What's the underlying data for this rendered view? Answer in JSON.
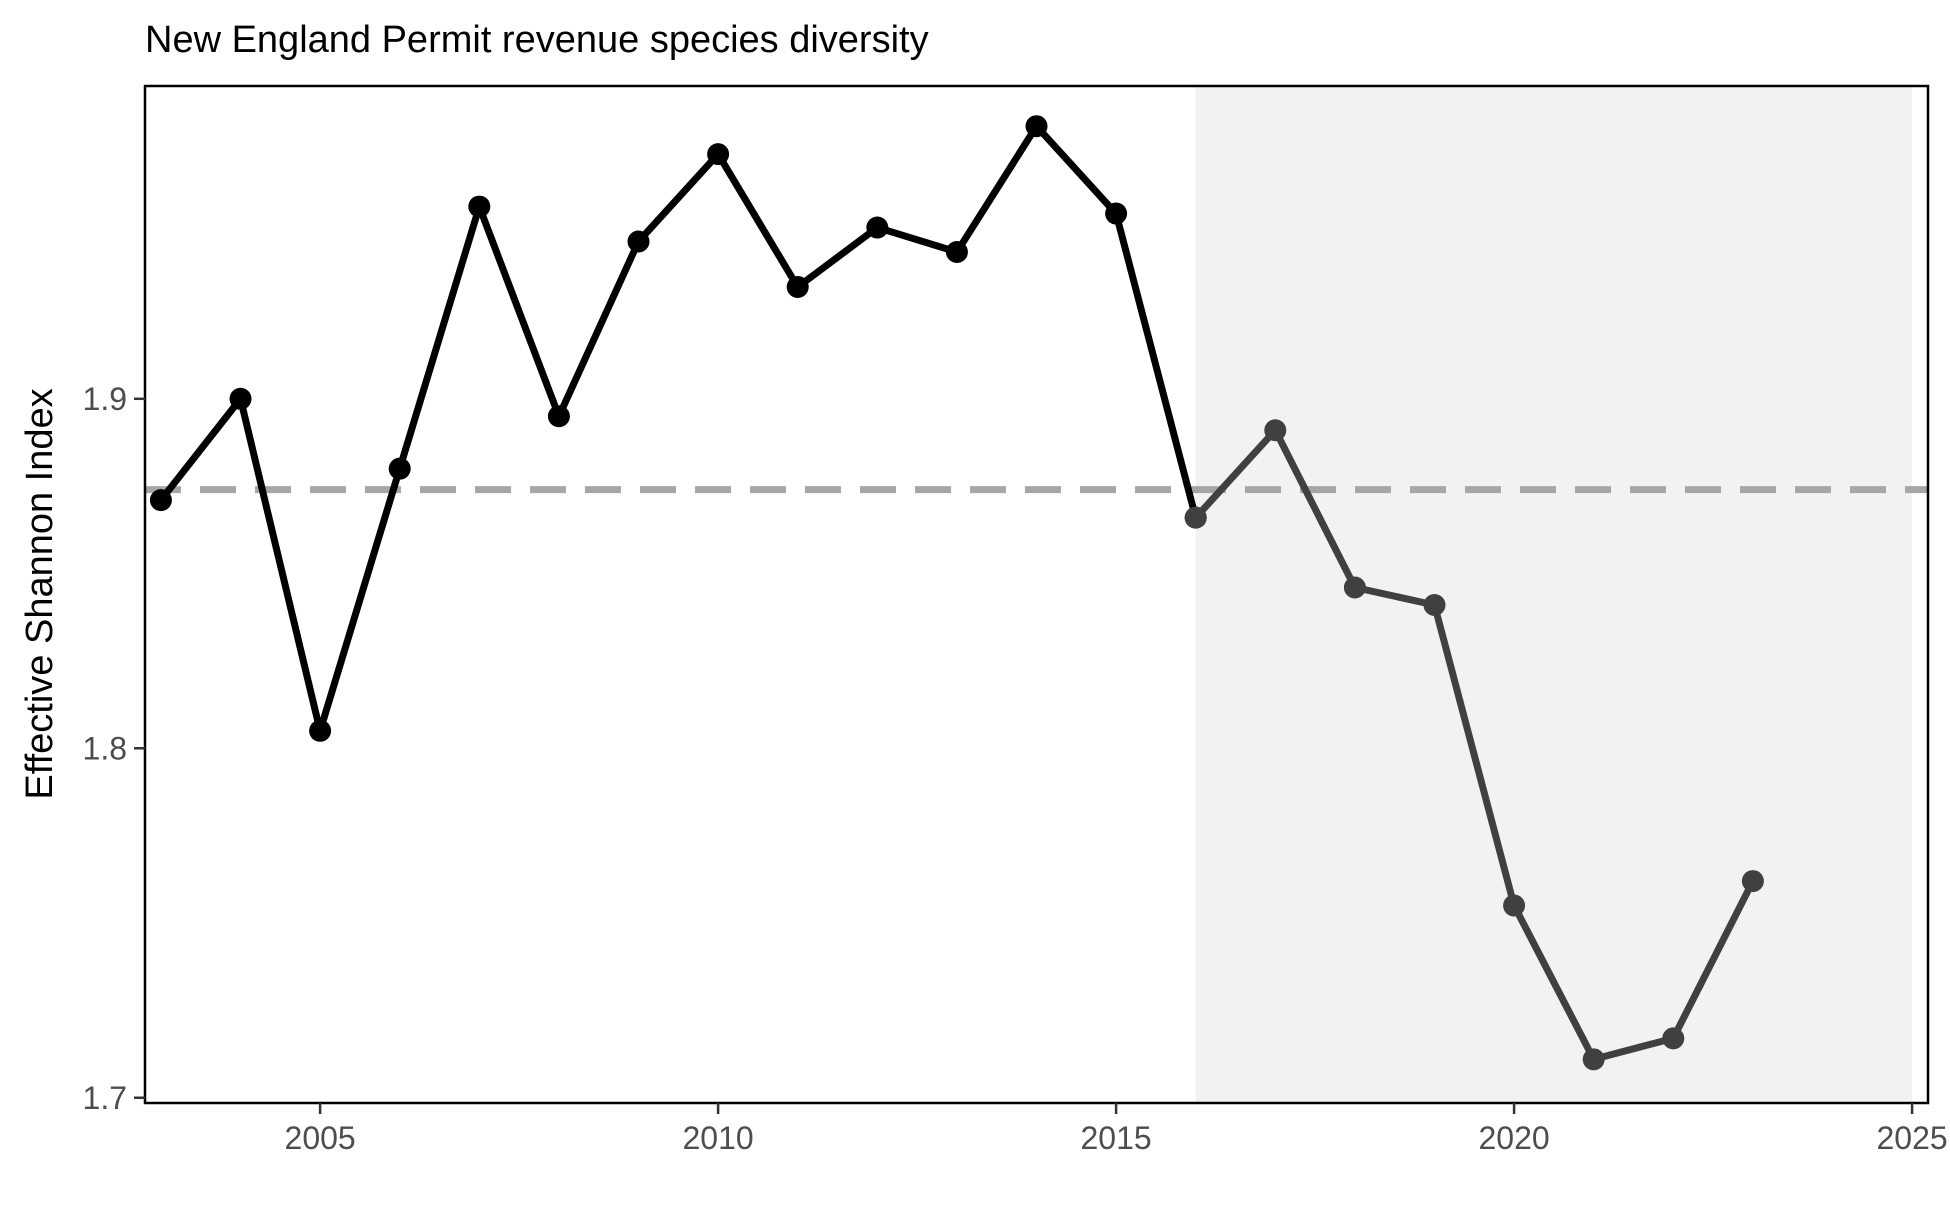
{
  "chart_data": {
    "type": "line",
    "title": "New England Permit revenue species diversity",
    "xlabel": "",
    "ylabel": "Effective Shannon Index",
    "xlim": [
      2002.8,
      2025.2
    ],
    "ylim": [
      1.6985,
      1.9895
    ],
    "x_ticks": [
      2005,
      2010,
      2015,
      2020,
      2025
    ],
    "x_tick_labels": [
      "2005",
      "2010",
      "2015",
      "2020",
      "2025"
    ],
    "y_ticks": [
      1.7,
      1.8,
      1.9
    ],
    "y_tick_labels": [
      "1.7",
      "1.8",
      "1.9"
    ],
    "grid": false,
    "reference_line": {
      "y": 1.874,
      "style": "dashed",
      "color": "#a6a6a6"
    },
    "shaded_region": {
      "x_start": 2016,
      "x_end": 2025,
      "color": "#f2f2f2"
    },
    "series": [
      {
        "color": "#000000",
        "x": [
          2003,
          2004,
          2005,
          2006,
          2007,
          2008,
          2009,
          2010,
          2011,
          2012,
          2013,
          2014,
          2015,
          2016
        ],
        "values": [
          1.871,
          1.9,
          1.805,
          1.88,
          1.955,
          1.895,
          1.945,
          1.97,
          1.932,
          1.949,
          1.942,
          1.978,
          1.953,
          1.866
        ]
      },
      {
        "color": "#404040",
        "x": [
          2016,
          2017,
          2018,
          2019,
          2020,
          2021,
          2022,
          2023
        ],
        "values": [
          1.866,
          1.891,
          1.846,
          1.841,
          1.755,
          1.711,
          1.717,
          1.762
        ]
      }
    ]
  }
}
